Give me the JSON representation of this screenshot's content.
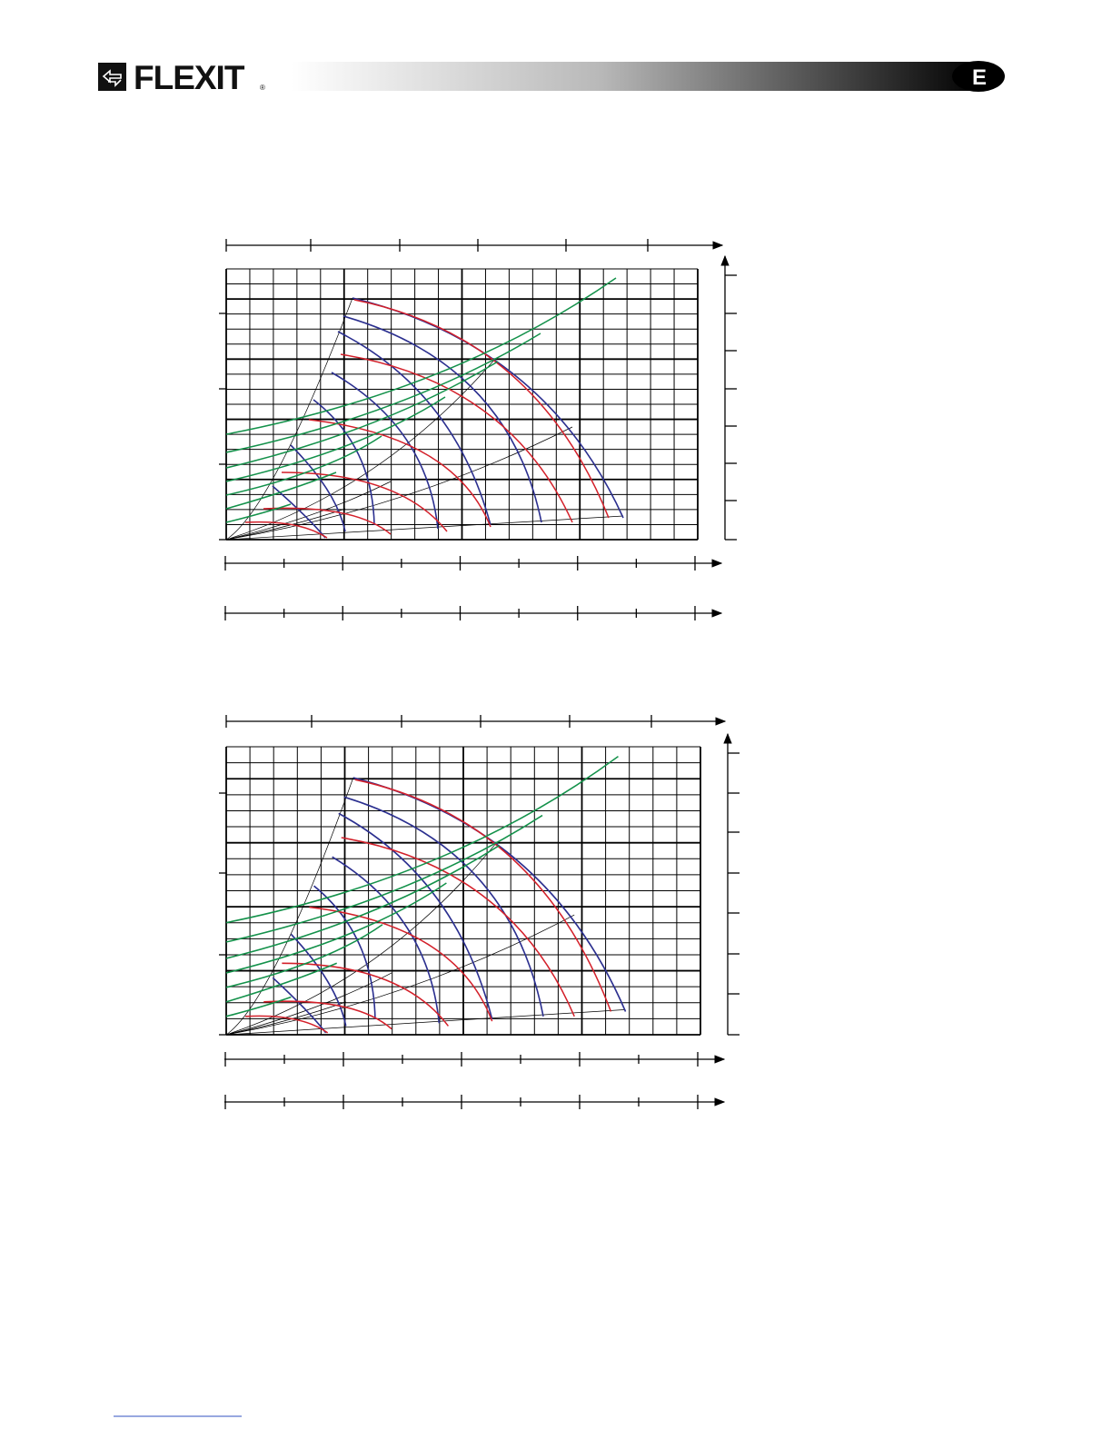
{
  "header": {
    "logo": "FLEXIT",
    "registered": "®",
    "language_badge": "E"
  }
}
